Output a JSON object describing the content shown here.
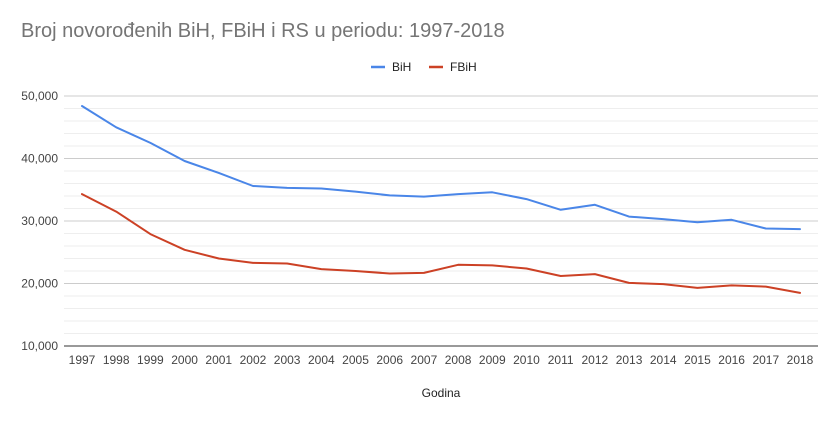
{
  "chart_data": {
    "type": "line",
    "title": "Broj novorođenih BiH, FBiH i RS u periodu: 1997-2018",
    "xlabel": "Godina",
    "ylabel": "",
    "x": [
      "1997",
      "1998",
      "1999",
      "2000",
      "2001",
      "2002",
      "2003",
      "2004",
      "2005",
      "2006",
      "2007",
      "2008",
      "2009",
      "2010",
      "2011",
      "2012",
      "2013",
      "2014",
      "2015",
      "2016",
      "2017",
      "2018"
    ],
    "ylim": [
      10000,
      50000
    ],
    "yticks": [
      "10,000",
      "20,000",
      "30,000",
      "40,000",
      "50,000"
    ],
    "grid": true,
    "legend_position": "top-center",
    "series": [
      {
        "name": "BiH",
        "color": "#4a86e8",
        "values": [
          48400,
          45000,
          42500,
          39600,
          37700,
          35600,
          35300,
          35200,
          34700,
          34100,
          33900,
          34300,
          34600,
          33500,
          31800,
          32600,
          30700,
          30300,
          29800,
          30200,
          28800,
          28700
        ]
      },
      {
        "name": "FBiH",
        "color": "#cc4125",
        "values": [
          34300,
          31500,
          27900,
          25400,
          24000,
          23300,
          23200,
          22300,
          22000,
          21600,
          21700,
          23000,
          22900,
          22400,
          21200,
          21500,
          20100,
          19900,
          19300,
          19700,
          19500,
          18500
        ]
      }
    ]
  }
}
